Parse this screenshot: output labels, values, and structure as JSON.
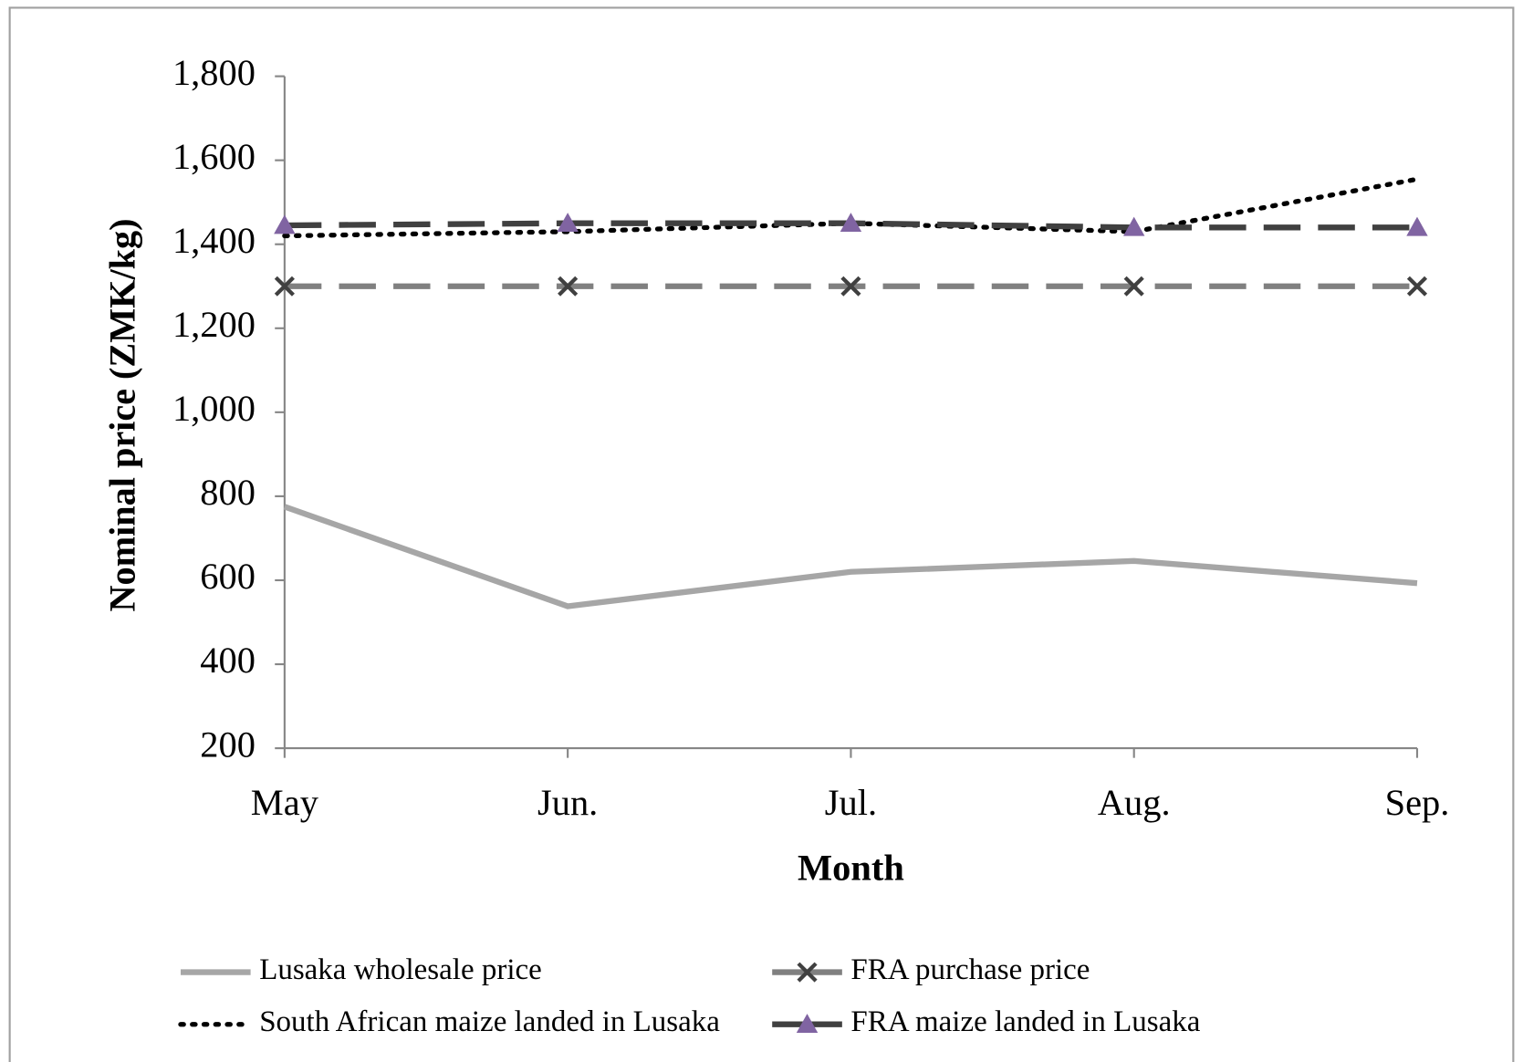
{
  "chart_data": {
    "type": "line",
    "xlabel": "Month",
    "ylabel": "Nominal price (ZMK/kg)",
    "categories": [
      "May",
      "Jun.",
      "Jul.",
      "Aug.",
      "Sep."
    ],
    "ylim": [
      200,
      1800
    ],
    "yticks": [
      200,
      400,
      600,
      800,
      {
        "value": 1000,
        "label": "1,000"
      },
      {
        "value": 1200,
        "label": "1,200"
      },
      {
        "value": 1400,
        "label": "1,400"
      },
      {
        "value": 1600,
        "label": "1,600"
      },
      {
        "value": 1800,
        "label": "1,800"
      }
    ],
    "grid": false,
    "series": [
      {
        "name": "Lusaka wholesale price",
        "color": "#a6a6a6",
        "style": "solid",
        "values": [
          775,
          538,
          620,
          646,
          593
        ]
      },
      {
        "name": "FRA purchase price",
        "color": "#808080",
        "style": "dashed",
        "marker": "x",
        "marker_color": "#404040",
        "values": [
          1300,
          1300,
          1300,
          1300,
          1300
        ]
      },
      {
        "name": "South African maize  landed in Lusaka",
        "color": "#000000",
        "style": "dotted",
        "values": [
          1420,
          1430,
          1450,
          1430,
          1555
        ]
      },
      {
        "name": "FRA maize landed in Lusaka",
        "color": "#404040",
        "style": "dashed",
        "marker": "triangle",
        "marker_color": "#8064a2",
        "values": [
          1445,
          1450,
          1450,
          1440,
          1440
        ]
      }
    ]
  }
}
